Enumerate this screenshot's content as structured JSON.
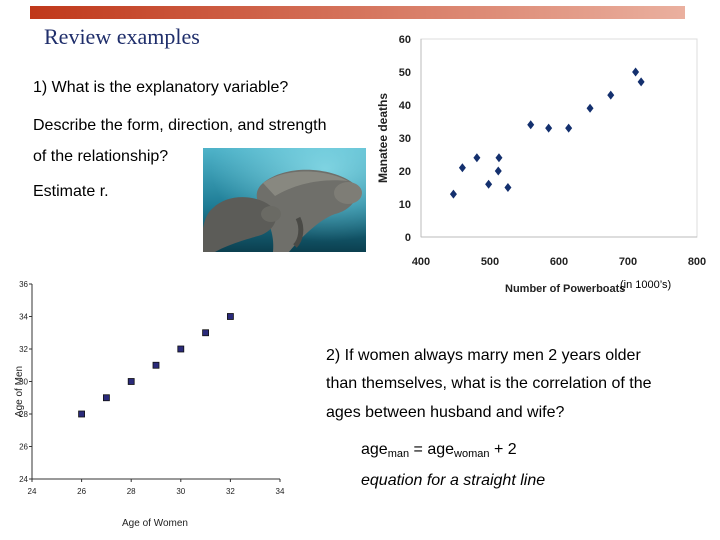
{
  "slide": {
    "title": "Review examples",
    "q1_line1": "1) What is the explanatory variable?",
    "q1_line2": "Describe the form, direction, and strength",
    "q1_line3": "of the relationship?",
    "q1_line4": "Estimate r.",
    "unit_note": "(in 1000’s)",
    "q2_line1": "2) If women always marry men 2 years older",
    "q2_line2": "than themselves, what is the correlation of the",
    "q2_line3": "ages between husband and wife?",
    "eq_age1": "age",
    "eq_sub_man": "man",
    "eq_mid": " = age",
    "eq_sub_woman": "woman",
    "eq_end": " + 2",
    "eq_caption": "equation for a straight line",
    "colors": {
      "bar_start": "#c0381a",
      "bar_end": "#eab09f",
      "title": "#1f2e6b",
      "marker1": "#14306e",
      "marker2": "#2a2a7a"
    },
    "photo_icon": "manatee-photo"
  },
  "chart_data": [
    {
      "type": "scatter",
      "title": "",
      "xlabel": "Number of Powerboats",
      "ylabel": "Manatee deaths",
      "xlim": [
        400,
        800
      ],
      "ylim": [
        0,
        60
      ],
      "xticks": [
        400,
        500,
        600,
        700,
        800
      ],
      "yticks": [
        0,
        10,
        20,
        30,
        40,
        50,
        60
      ],
      "grid": false,
      "marker": "diamond",
      "points": [
        {
          "x": 447,
          "y": 13
        },
        {
          "x": 460,
          "y": 21
        },
        {
          "x": 481,
          "y": 24
        },
        {
          "x": 498,
          "y": 16
        },
        {
          "x": 513,
          "y": 24
        },
        {
          "x": 512,
          "y": 20
        },
        {
          "x": 526,
          "y": 15
        },
        {
          "x": 559,
          "y": 34
        },
        {
          "x": 585,
          "y": 33
        },
        {
          "x": 614,
          "y": 33
        },
        {
          "x": 645,
          "y": 39
        },
        {
          "x": 675,
          "y": 43
        },
        {
          "x": 711,
          "y": 50
        },
        {
          "x": 719,
          "y": 47
        }
      ]
    },
    {
      "type": "scatter",
      "title": "",
      "xlabel": "Age of Women",
      "ylabel": "Age of Men",
      "xlim": [
        24,
        34
      ],
      "ylim": [
        24,
        36
      ],
      "xticks": [
        24,
        26,
        28,
        30,
        32,
        34
      ],
      "yticks": [
        24,
        26,
        28,
        30,
        32,
        34,
        36
      ],
      "grid": false,
      "marker": "square",
      "points": [
        {
          "x": 26,
          "y": 28
        },
        {
          "x": 27,
          "y": 29
        },
        {
          "x": 28,
          "y": 30
        },
        {
          "x": 29,
          "y": 31
        },
        {
          "x": 30,
          "y": 32
        },
        {
          "x": 31,
          "y": 33
        },
        {
          "x": 32,
          "y": 34
        }
      ]
    }
  ]
}
